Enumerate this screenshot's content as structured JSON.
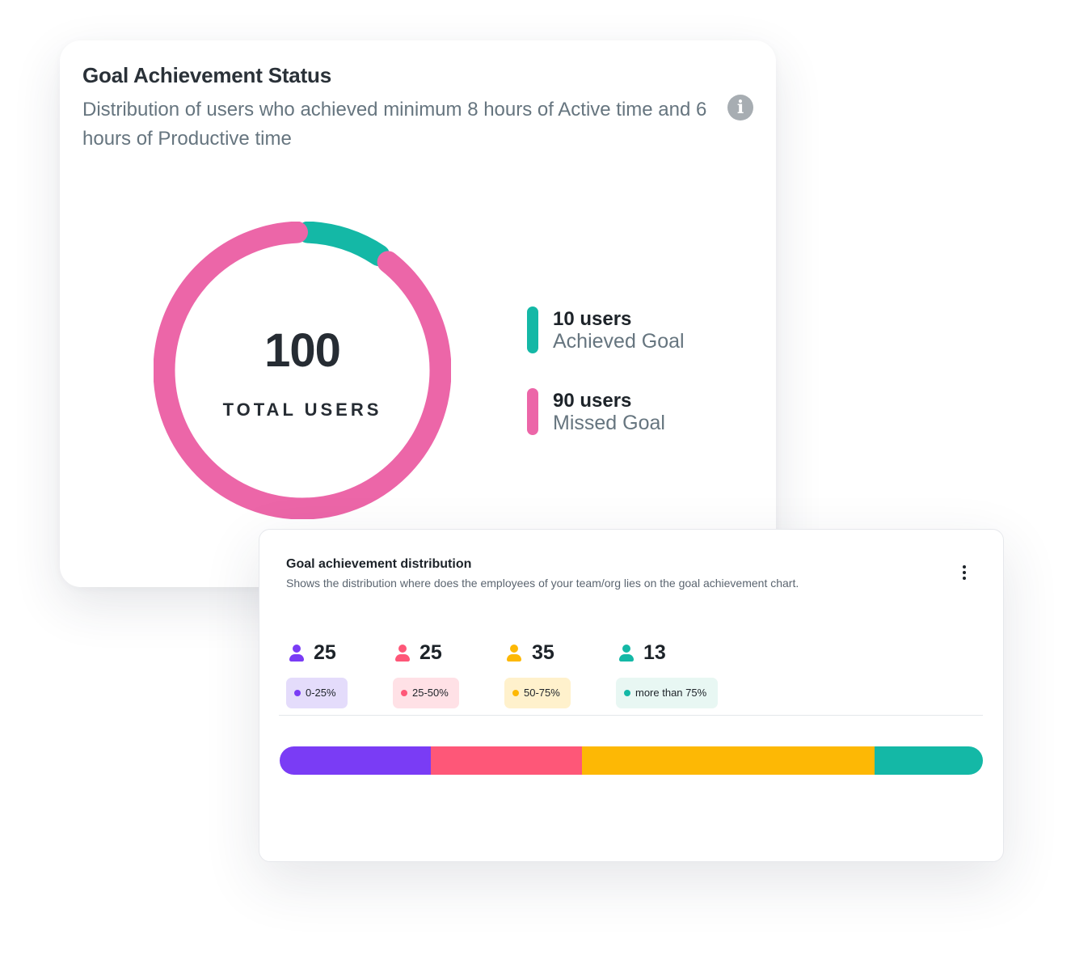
{
  "goal_status": {
    "title": "Goal Achievement Status",
    "subtitle": "Distribution of users who achieved minimum 8 hours of Active time and 6 hours of Productive time",
    "info_icon": "info-icon",
    "total": "100",
    "total_label": "TOTAL USERS",
    "legend": [
      {
        "count_text": "10 users",
        "label": "Achieved Goal",
        "color": "#14b8a6"
      },
      {
        "count_text": "90 users",
        "label": "Missed Goal",
        "color": "#ec66a8"
      }
    ]
  },
  "chart_data": {
    "type": "pie",
    "labels": [
      "Achieved Goal",
      "Missed Goal"
    ],
    "values": [
      10,
      90
    ],
    "colors": [
      "#14b8a6",
      "#ec66a8"
    ]
  },
  "distribution": {
    "title": "Goal achievement distribution",
    "subtitle": "Shows the distribution where does the employees of your team/org lies on the goal achievement chart.",
    "menu_icon": "kebab-menu-icon",
    "user_icon": "user-icon",
    "groups": [
      {
        "count": "25",
        "label": "0-25%",
        "color": "#7a3cf5",
        "chip_bg": "#e4dcfb",
        "bar_share": 21.5
      },
      {
        "count": "25",
        "label": "25-50%",
        "color": "#fe5778",
        "chip_bg": "#ffe1e6",
        "bar_share": 21.5
      },
      {
        "count": "35",
        "label": "50-75%",
        "color": "#fdb805",
        "chip_bg": "#fff1cc",
        "bar_share": 41.6
      },
      {
        "count": "13",
        "label": "more than 75%",
        "color": "#14b8a6",
        "chip_bg": "#e8f7f3",
        "bar_share": 15.4
      }
    ]
  }
}
